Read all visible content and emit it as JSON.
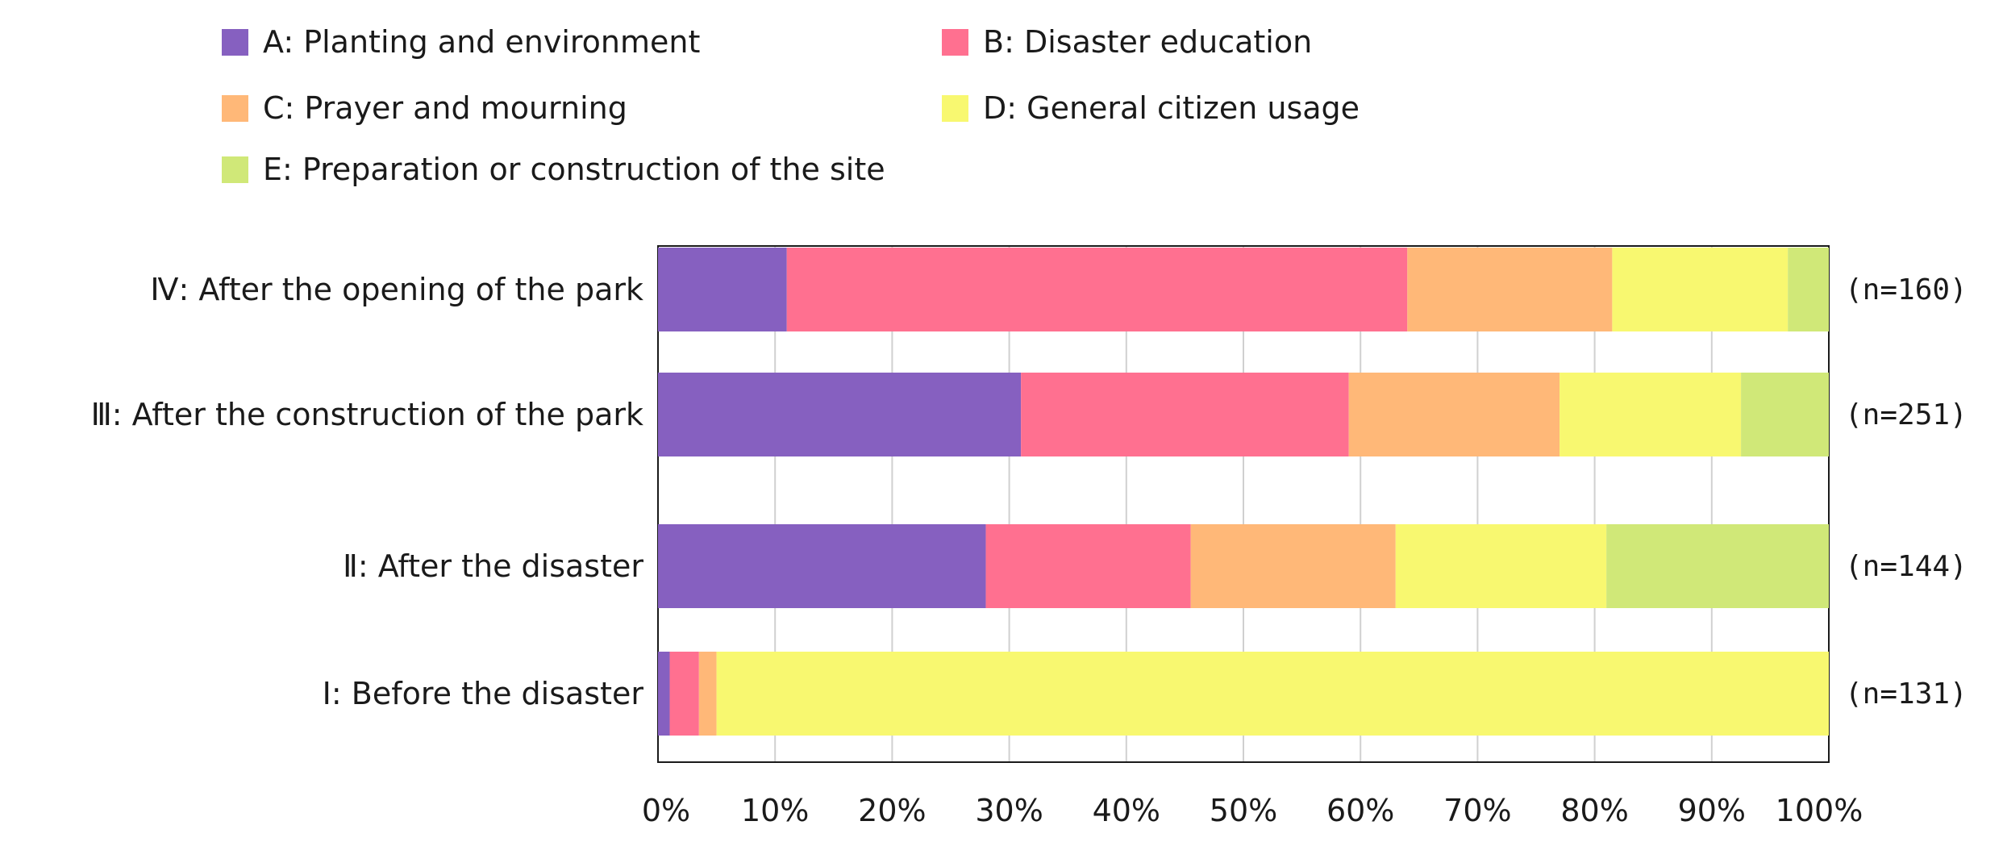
{
  "chart_data": {
    "type": "bar",
    "orientation": "horizontal",
    "stacked": true,
    "percent_stacked": true,
    "categories": [
      "Ⅳ: After the opening of the park",
      "Ⅲ: After the construction of the park",
      "Ⅱ: After the disaster",
      "Ⅰ: Before the disaster"
    ],
    "sample_sizes": [
      "(n=160)",
      "(n=251)",
      "(n=144)",
      "(n=131)"
    ],
    "series": [
      {
        "name": "A: Planting and environment",
        "color": "#8660c0",
        "values": [
          11,
          31,
          28,
          1
        ]
      },
      {
        "name": "B: Disaster education",
        "color": "#ff7090",
        "values": [
          53,
          28,
          17.5,
          2.5
        ]
      },
      {
        "name": "C: Prayer and mourning",
        "color": "#ffb878",
        "values": [
          17.5,
          18,
          17.5,
          1.5
        ]
      },
      {
        "name": "D: General citizen usage",
        "color": "#f8f870",
        "values": [
          15,
          15.5,
          18,
          95
        ]
      },
      {
        "name": "E: Preparation or construction of the site",
        "color": "#d0e878",
        "values": [
          3.5,
          7.5,
          19,
          0
        ]
      }
    ],
    "xlim": [
      0,
      100
    ],
    "x_ticks": [
      "0%",
      "10%",
      "20%",
      "30%",
      "40%",
      "50%",
      "60%",
      "70%",
      "80%",
      "90%",
      "100%"
    ],
    "grid": "vertical",
    "legend_position": "top",
    "title": "",
    "xlabel": "",
    "ylabel": ""
  }
}
